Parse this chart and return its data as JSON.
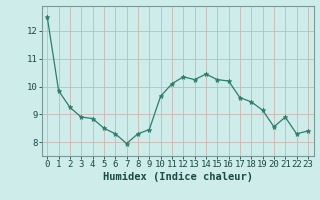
{
  "x": [
    0,
    1,
    2,
    3,
    4,
    5,
    6,
    7,
    8,
    9,
    10,
    11,
    12,
    13,
    14,
    15,
    16,
    17,
    18,
    19,
    20,
    21,
    22,
    23
  ],
  "y": [
    12.5,
    9.85,
    9.25,
    8.9,
    8.85,
    8.5,
    8.3,
    7.95,
    8.3,
    8.45,
    9.65,
    10.1,
    10.35,
    10.25,
    10.45,
    10.25,
    10.2,
    9.6,
    9.45,
    9.15,
    8.55,
    8.9,
    8.3,
    8.4
  ],
  "xlabel": "Humidex (Indice chaleur)",
  "ylim": [
    7.5,
    12.9
  ],
  "xlim": [
    -0.5,
    23.5
  ],
  "yticks": [
    8,
    9,
    10,
    11,
    12
  ],
  "xticks": [
    0,
    1,
    2,
    3,
    4,
    5,
    6,
    7,
    8,
    9,
    10,
    11,
    12,
    13,
    14,
    15,
    16,
    17,
    18,
    19,
    20,
    21,
    22,
    23
  ],
  "line_color": "#2e7d6e",
  "marker": "*",
  "marker_size": 3.5,
  "bg_color": "#cdecea",
  "grid_color": "#c8b8b0",
  "axis_color": "#7a9a96",
  "label_color": "#1a4a46",
  "tick_label_size": 6.5,
  "xlabel_size": 7.5
}
